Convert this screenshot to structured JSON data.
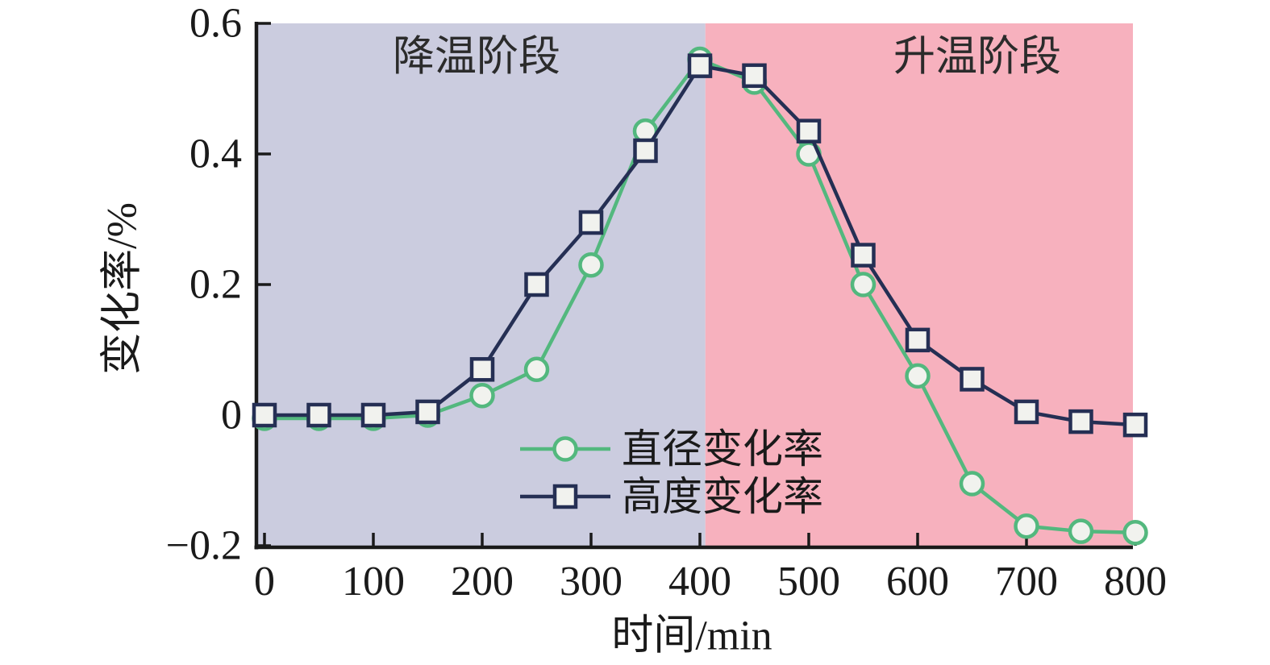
{
  "chart_data": {
    "type": "line",
    "title": "",
    "xlabel": "时间/min",
    "ylabel": "变化率/%",
    "xlim": [
      -10,
      810
    ],
    "ylim": [
      -0.2,
      0.6
    ],
    "grid": false,
    "x_ticks": [
      0,
      100,
      200,
      300,
      400,
      500,
      600,
      700,
      800
    ],
    "y_ticks": [
      -0.2,
      0,
      0.2,
      0.4,
      0.6
    ],
    "y_tick_labels": [
      "−0.2",
      "0",
      "0.2",
      "0.4",
      "0.6"
    ],
    "x": [
      0,
      50,
      100,
      150,
      200,
      250,
      300,
      350,
      400,
      450,
      500,
      550,
      600,
      650,
      700,
      750,
      800
    ],
    "series": [
      {
        "name": "直径变化率",
        "marker": "circle",
        "color": "#53b87e",
        "marker_fill": "#f1f2ee",
        "values": [
          -0.005,
          -0.005,
          -0.005,
          0,
          0.03,
          0.07,
          0.23,
          0.435,
          0.545,
          0.51,
          0.4,
          0.2,
          0.06,
          -0.105,
          -0.17,
          -0.178,
          -0.18
        ]
      },
      {
        "name": "高度变化率",
        "marker": "square",
        "color": "#252f54",
        "marker_fill": "#f1f2ee",
        "values": [
          0,
          0,
          0,
          0.005,
          0.07,
          0.2,
          0.295,
          0.405,
          0.535,
          0.52,
          0.435,
          0.245,
          0.115,
          0.055,
          0.005,
          -0.01,
          -0.015
        ]
      }
    ],
    "regions": [
      {
        "label": "降温阶段",
        "from": -10,
        "to": 405,
        "color": "#cbccdf"
      },
      {
        "label": "升温阶段",
        "from": 405,
        "to": 810,
        "color": "#f7b1be"
      }
    ],
    "legend": {
      "position": "inside-bottom-center",
      "items": [
        "直径变化率",
        "高度变化率"
      ]
    },
    "axis_color": "#1a1a1a"
  }
}
